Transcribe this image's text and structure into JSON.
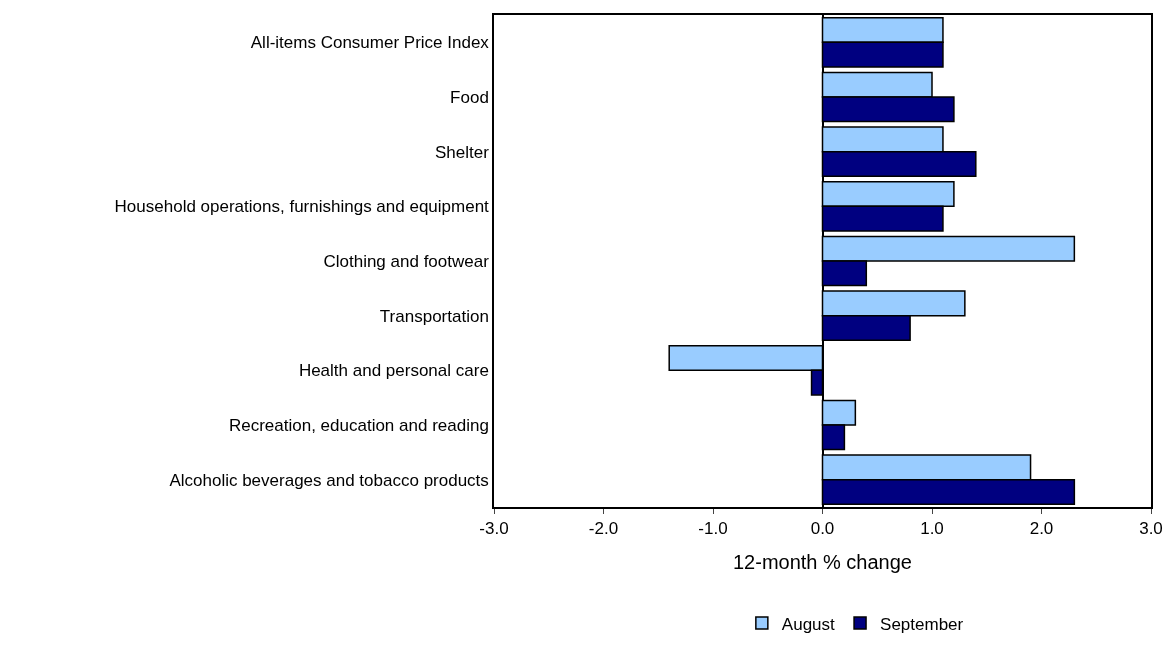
{
  "chart_data": {
    "type": "bar",
    "orientation": "horizontal",
    "xlabel": "12-month % change",
    "categories": [
      "All-items Consumer Price Index",
      "Food",
      "Shelter",
      "Household operations, furnishings and equipment",
      "Clothing and footwear",
      "Transportation",
      "Health and personal care",
      "Recreation, education and reading",
      "Alcoholic beverages and tobacco products"
    ],
    "series": [
      {
        "name": "August",
        "color": "#99ccff",
        "values": [
          1.1,
          1.0,
          1.1,
          1.2,
          2.3,
          1.3,
          -1.4,
          0.3,
          1.9
        ]
      },
      {
        "name": "September",
        "color": "#000080",
        "values": [
          1.1,
          1.2,
          1.4,
          1.1,
          0.4,
          0.8,
          -0.1,
          0.2,
          2.3
        ]
      }
    ],
    "xlim": [
      -3.0,
      3.0
    ],
    "xticks": [
      {
        "value": -3,
        "label": "-3.0"
      },
      {
        "value": -2,
        "label": "-2.0"
      },
      {
        "value": -1,
        "label": "-1.0"
      },
      {
        "value": 0,
        "label": "0.0"
      },
      {
        "value": 1,
        "label": "1.0"
      },
      {
        "value": 2,
        "label": "2.0"
      },
      {
        "value": 3,
        "label": "3.0"
      }
    ],
    "legend": "bottom"
  }
}
